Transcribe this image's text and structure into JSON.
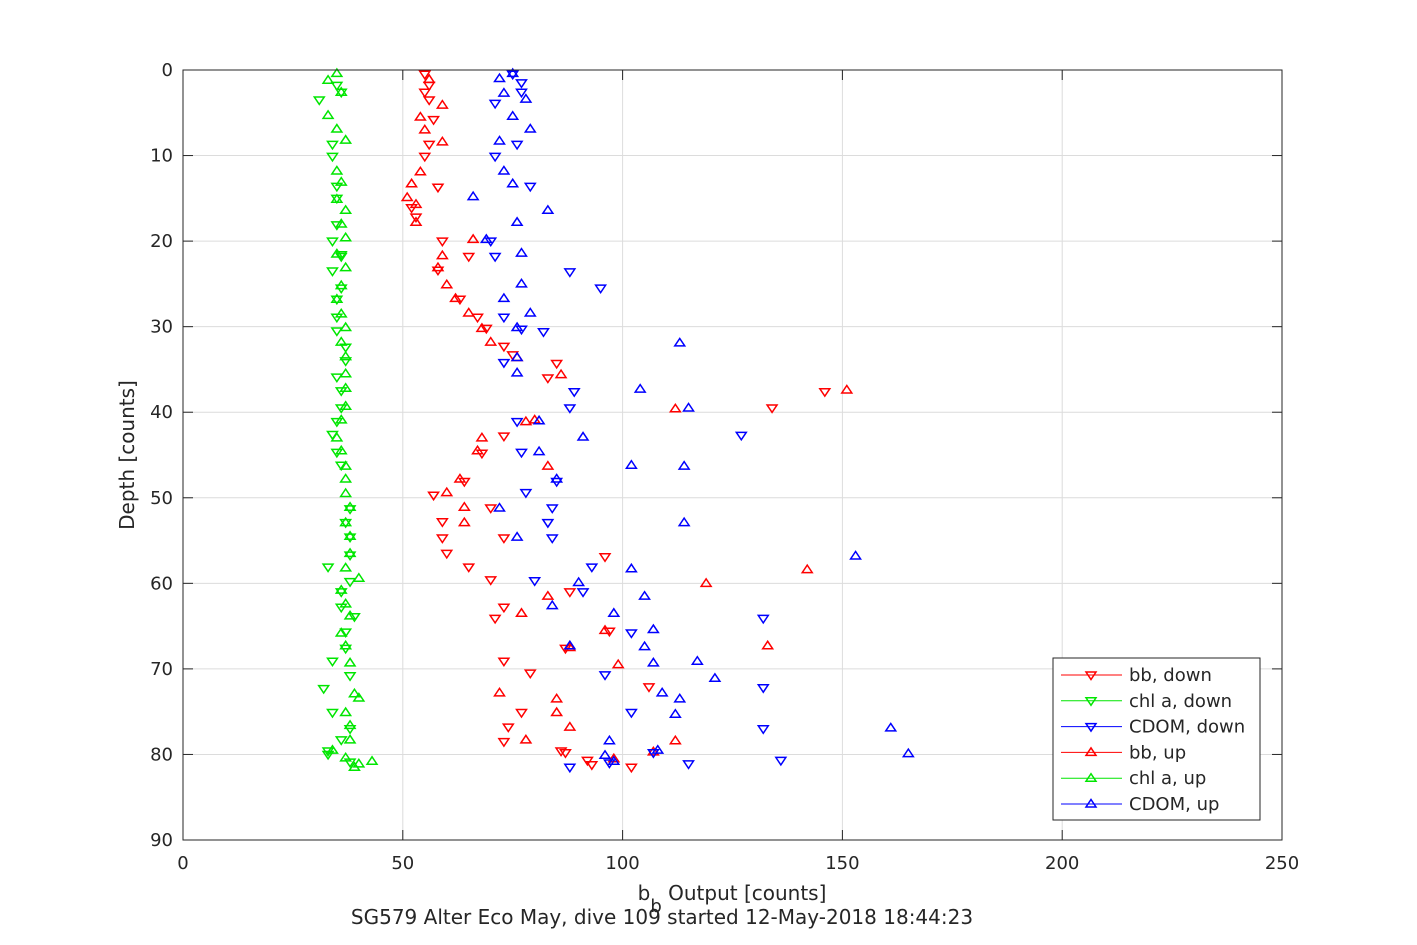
{
  "chart_data": {
    "type": "scatter",
    "xlabel_main": "b",
    "xlabel_sub": "b",
    "xlabel_rest": " Output [counts]",
    "ylabel": "Depth [counts]",
    "caption": "SG579 Alter Eco May, dive 109 started 12-May-2018 18:44:23",
    "xlim": [
      0,
      250
    ],
    "ylim": [
      0,
      90
    ],
    "y_reversed": true,
    "grid": true,
    "legend_placement": "bottom-right",
    "xticks": [
      0,
      50,
      100,
      150,
      200,
      250
    ],
    "yticks": [
      0,
      10,
      20,
      30,
      40,
      50,
      60,
      70,
      80,
      90
    ],
    "series": [
      {
        "name": "bb, down",
        "color": "#ff0000",
        "marker": "down",
        "points": [
          [
            55,
            0.5
          ],
          [
            56,
            1.8
          ],
          [
            55,
            2.6
          ],
          [
            56,
            3.5
          ],
          [
            57,
            5.8
          ],
          [
            56,
            8.7
          ],
          [
            55,
            10.1
          ],
          [
            58,
            13.7
          ],
          [
            52,
            16.1
          ],
          [
            53,
            17.2
          ],
          [
            59,
            20.0
          ],
          [
            65,
            21.8
          ],
          [
            58,
            23.4
          ],
          [
            63,
            26.8
          ],
          [
            67,
            28.9
          ],
          [
            69,
            30.2
          ],
          [
            73,
            32.3
          ],
          [
            75,
            33.3
          ],
          [
            85,
            34.3
          ],
          [
            83,
            36.0
          ],
          [
            146,
            37.6
          ],
          [
            134,
            39.5
          ],
          [
            73,
            42.8
          ],
          [
            68,
            44.8
          ],
          [
            64,
            48.1
          ],
          [
            57,
            49.7
          ],
          [
            70,
            51.2
          ],
          [
            59,
            52.8
          ],
          [
            59,
            54.7
          ],
          [
            73,
            54.7
          ],
          [
            60,
            56.5
          ],
          [
            65,
            58.1
          ],
          [
            70,
            59.6
          ],
          [
            96,
            56.9
          ],
          [
            88,
            61.0
          ],
          [
            73,
            62.8
          ],
          [
            71,
            64.1
          ],
          [
            97,
            65.6
          ],
          [
            87,
            67.6
          ],
          [
            73,
            69.1
          ],
          [
            79,
            70.5
          ],
          [
            106,
            72.1
          ],
          [
            77,
            75.1
          ],
          [
            74,
            76.8
          ],
          [
            73,
            78.5
          ],
          [
            86,
            79.6
          ],
          [
            87,
            79.8
          ],
          [
            92,
            80.7
          ],
          [
            93,
            81.2
          ],
          [
            102,
            81.5
          ]
        ]
      },
      {
        "name": "chl a, down",
        "color": "#00e600",
        "marker": "down",
        "points": [
          [
            35,
            1.8
          ],
          [
            36,
            2.6
          ],
          [
            31,
            3.5
          ],
          [
            34,
            8.7
          ],
          [
            34,
            10.1
          ],
          [
            35,
            13.6
          ],
          [
            35,
            15.0
          ],
          [
            35,
            18.1
          ],
          [
            34,
            20.0
          ],
          [
            36,
            21.8
          ],
          [
            36,
            21.6
          ],
          [
            34,
            23.5
          ],
          [
            36,
            25.5
          ],
          [
            35,
            26.8
          ],
          [
            35,
            28.9
          ],
          [
            35,
            30.5
          ],
          [
            37,
            32.4
          ],
          [
            37,
            34.0
          ],
          [
            35,
            35.9
          ],
          [
            36,
            37.5
          ],
          [
            36,
            39.5
          ],
          [
            35,
            41.1
          ],
          [
            34,
            42.6
          ],
          [
            35,
            44.7
          ],
          [
            36,
            46.2
          ],
          [
            38,
            51.3
          ],
          [
            37,
            52.9
          ],
          [
            38,
            54.6
          ],
          [
            38,
            56.7
          ],
          [
            33,
            58.1
          ],
          [
            38,
            59.8
          ],
          [
            36,
            61.0
          ],
          [
            36,
            62.8
          ],
          [
            39,
            63.9
          ],
          [
            37,
            65.7
          ],
          [
            37,
            67.6
          ],
          [
            34,
            69.1
          ],
          [
            38,
            70.8
          ],
          [
            32,
            72.3
          ],
          [
            34,
            75.1
          ],
          [
            38,
            77.0
          ],
          [
            36,
            78.3
          ],
          [
            33,
            79.6
          ],
          [
            33,
            80.0
          ],
          [
            38,
            80.9
          ]
        ]
      },
      {
        "name": "CDOM, down",
        "color": "#0000ff",
        "marker": "down",
        "points": [
          [
            75,
            0.5
          ],
          [
            77,
            1.5
          ],
          [
            77,
            2.6
          ],
          [
            71,
            3.9
          ],
          [
            76,
            8.7
          ],
          [
            71,
            10.1
          ],
          [
            79,
            13.6
          ],
          [
            70,
            20.0
          ],
          [
            71,
            21.8
          ],
          [
            88,
            23.6
          ],
          [
            95,
            25.5
          ],
          [
            73,
            28.9
          ],
          [
            77,
            30.3
          ],
          [
            82,
            30.6
          ],
          [
            73,
            34.2
          ],
          [
            89,
            37.6
          ],
          [
            88,
            39.5
          ],
          [
            76,
            41.1
          ],
          [
            127,
            42.7
          ],
          [
            77,
            44.7
          ],
          [
            85,
            48.1
          ],
          [
            78,
            49.4
          ],
          [
            84,
            51.2
          ],
          [
            83,
            52.9
          ],
          [
            84,
            54.7
          ],
          [
            93,
            58.1
          ],
          [
            80,
            59.7
          ],
          [
            91,
            61.0
          ],
          [
            132,
            64.1
          ],
          [
            102,
            65.8
          ],
          [
            96,
            70.7
          ],
          [
            132,
            72.2
          ],
          [
            102,
            75.1
          ],
          [
            132,
            77.0
          ],
          [
            107,
            79.8
          ],
          [
            97,
            81.0
          ],
          [
            115,
            81.1
          ],
          [
            136,
            80.7
          ],
          [
            88,
            81.5
          ]
        ]
      },
      {
        "name": "bb, up",
        "color": "#ff0000",
        "marker": "up",
        "points": [
          [
            56,
            1.1
          ],
          [
            59,
            4.1
          ],
          [
            54,
            5.5
          ],
          [
            55,
            7.0
          ],
          [
            59,
            8.4
          ],
          [
            54,
            11.9
          ],
          [
            52,
            13.3
          ],
          [
            51,
            14.9
          ],
          [
            53,
            15.7
          ],
          [
            53,
            17.8
          ],
          [
            66,
            19.8
          ],
          [
            59,
            21.7
          ],
          [
            58,
            23.1
          ],
          [
            60,
            25.1
          ],
          [
            62,
            26.7
          ],
          [
            65,
            28.4
          ],
          [
            68,
            30.2
          ],
          [
            70,
            31.8
          ],
          [
            76,
            33.6
          ],
          [
            86,
            35.6
          ],
          [
            151,
            37.4
          ],
          [
            112,
            39.6
          ],
          [
            78,
            41.1
          ],
          [
            80,
            40.9
          ],
          [
            68,
            43.0
          ],
          [
            67,
            44.5
          ],
          [
            83,
            46.3
          ],
          [
            63,
            47.8
          ],
          [
            60,
            49.4
          ],
          [
            64,
            51.1
          ],
          [
            64,
            52.9
          ],
          [
            78,
            78.3
          ],
          [
            142,
            58.4
          ],
          [
            119,
            60.0
          ],
          [
            83,
            61.5
          ],
          [
            77,
            63.5
          ],
          [
            96,
            65.5
          ],
          [
            88,
            67.5
          ],
          [
            133,
            67.3
          ],
          [
            99,
            69.5
          ],
          [
            72,
            72.8
          ],
          [
            85,
            73.5
          ],
          [
            85,
            75.1
          ],
          [
            88,
            76.8
          ],
          [
            112,
            78.4
          ],
          [
            107,
            79.7
          ],
          [
            98,
            80.5
          ]
        ]
      },
      {
        "name": "chl a, up",
        "color": "#00e600",
        "marker": "up",
        "points": [
          [
            35,
            0.4
          ],
          [
            33,
            1.2
          ],
          [
            36,
            2.6
          ],
          [
            33,
            5.3
          ],
          [
            35,
            6.9
          ],
          [
            37,
            8.2
          ],
          [
            35,
            11.8
          ],
          [
            36,
            13.1
          ],
          [
            35,
            15.1
          ],
          [
            37,
            16.4
          ],
          [
            36,
            18.0
          ],
          [
            37,
            19.6
          ],
          [
            35,
            21.5
          ],
          [
            37,
            23.1
          ],
          [
            36,
            25.2
          ],
          [
            35,
            26.8
          ],
          [
            36,
            28.5
          ],
          [
            37,
            30.1
          ],
          [
            36,
            31.8
          ],
          [
            37,
            33.5
          ],
          [
            37,
            35.5
          ],
          [
            37,
            37.2
          ],
          [
            37,
            39.3
          ],
          [
            36,
            40.9
          ],
          [
            35,
            43.0
          ],
          [
            36,
            44.5
          ],
          [
            37,
            46.3
          ],
          [
            37,
            47.8
          ],
          [
            37,
            49.5
          ],
          [
            38,
            51.1
          ],
          [
            37,
            52.9
          ],
          [
            38,
            54.5
          ],
          [
            38,
            56.5
          ],
          [
            37,
            58.2
          ],
          [
            40,
            59.4
          ],
          [
            36,
            60.8
          ],
          [
            37,
            62.4
          ],
          [
            38,
            63.8
          ],
          [
            36,
            65.8
          ],
          [
            37,
            67.3
          ],
          [
            38,
            69.3
          ],
          [
            39,
            72.9
          ],
          [
            40,
            73.4
          ],
          [
            37,
            75.1
          ],
          [
            38,
            76.6
          ],
          [
            38,
            78.3
          ],
          [
            34,
            79.5
          ],
          [
            37,
            80.4
          ],
          [
            43,
            80.8
          ],
          [
            40,
            81.1
          ],
          [
            39,
            81.5
          ]
        ]
      },
      {
        "name": "CDOM, up",
        "color": "#0000ff",
        "marker": "up",
        "points": [
          [
            75,
            0.4
          ],
          [
            72,
            1.0
          ],
          [
            73,
            2.7
          ],
          [
            78,
            3.4
          ],
          [
            75,
            5.4
          ],
          [
            79,
            6.9
          ],
          [
            72,
            8.3
          ],
          [
            73,
            11.8
          ],
          [
            75,
            13.3
          ],
          [
            66,
            14.8
          ],
          [
            83,
            16.4
          ],
          [
            76,
            17.8
          ],
          [
            69,
            19.8
          ],
          [
            77,
            21.4
          ],
          [
            77,
            25.0
          ],
          [
            73,
            26.7
          ],
          [
            79,
            28.4
          ],
          [
            76,
            30.1
          ],
          [
            113,
            31.9
          ],
          [
            76,
            33.6
          ],
          [
            76,
            35.4
          ],
          [
            104,
            37.3
          ],
          [
            115,
            39.5
          ],
          [
            81,
            41.0
          ],
          [
            91,
            42.9
          ],
          [
            81,
            44.6
          ],
          [
            102,
            46.2
          ],
          [
            114,
            46.3
          ],
          [
            85,
            47.8
          ],
          [
            72,
            51.2
          ],
          [
            114,
            52.9
          ],
          [
            76,
            54.6
          ],
          [
            153,
            56.8
          ],
          [
            102,
            58.3
          ],
          [
            90,
            59.9
          ],
          [
            105,
            61.5
          ],
          [
            84,
            62.6
          ],
          [
            98,
            63.5
          ],
          [
            107,
            65.4
          ],
          [
            105,
            67.4
          ],
          [
            88,
            67.3
          ],
          [
            107,
            69.3
          ],
          [
            117,
            69.1
          ],
          [
            121,
            71.1
          ],
          [
            109,
            72.8
          ],
          [
            113,
            73.5
          ],
          [
            112,
            75.3
          ],
          [
            161,
            76.9
          ],
          [
            97,
            78.4
          ],
          [
            108,
            79.5
          ],
          [
            96,
            80.1
          ],
          [
            98,
            80.8
          ],
          [
            165,
            79.9
          ]
        ]
      }
    ]
  }
}
